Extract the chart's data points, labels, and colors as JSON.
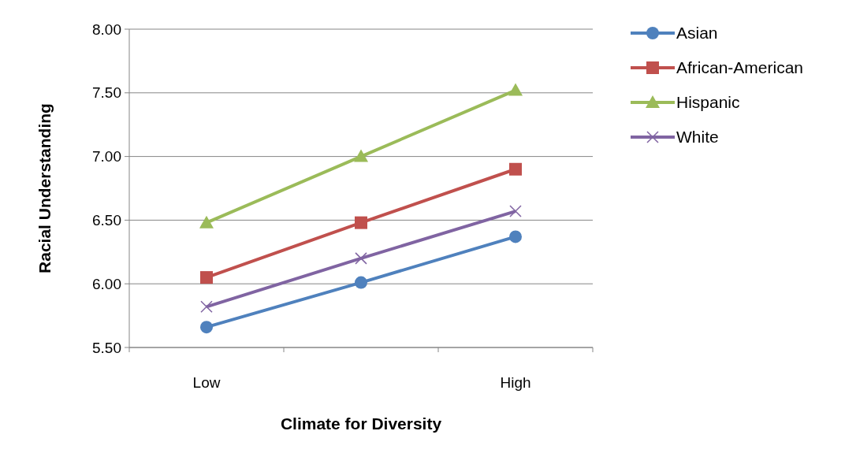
{
  "chart_data": {
    "type": "line",
    "xlabel": "Climate for Diversity",
    "ylabel": "Racial Understanding",
    "categories": [
      "Low",
      null,
      "High"
    ],
    "series": [
      {
        "name": "Asian",
        "color": "#4f81bd",
        "marker": "circle",
        "values": [
          5.66,
          6.01,
          6.37
        ]
      },
      {
        "name": "African-American",
        "color": "#c0504d",
        "marker": "square",
        "values": [
          6.05,
          6.48,
          6.9
        ]
      },
      {
        "name": "Hispanic",
        "color": "#9bbb59",
        "marker": "triangle",
        "values": [
          6.48,
          7.0,
          7.52
        ]
      },
      {
        "name": "White",
        "color": "#8064a2",
        "marker": "cross",
        "values": [
          5.82,
          6.2,
          6.57
        ]
      }
    ],
    "ylim": [
      5.5,
      8
    ],
    "yticks": [
      {
        "value": 5.5,
        "label": "5.50"
      },
      {
        "value": 6,
        "label": "6.00"
      },
      {
        "value": 6.5,
        "label": "6.50"
      },
      {
        "value": 7,
        "label": "7.00"
      },
      {
        "value": 7.5,
        "label": "7.50"
      },
      {
        "value": 8,
        "label": "8.00"
      }
    ],
    "grid": "y",
    "legend": "right",
    "line_style": "solid"
  }
}
